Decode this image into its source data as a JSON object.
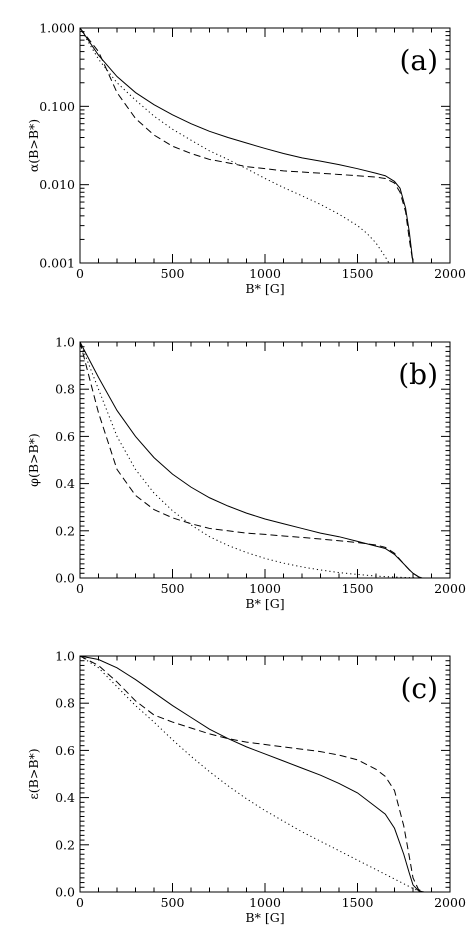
{
  "chart_data": [
    {
      "type": "line",
      "panel_label": "(a)",
      "xlabel": "B* [G]",
      "ylabel": "α(B>B*)",
      "xlim": [
        0,
        2000
      ],
      "ylim": [
        0.001,
        1.0
      ],
      "yscale": "log",
      "xticks": [
        0,
        500,
        1000,
        1500,
        2000
      ],
      "xtick_labels": [
        "0",
        "500",
        "1000",
        "1500",
        "2000"
      ],
      "yticks": [
        0.001,
        0.01,
        0.1,
        1.0
      ],
      "ytick_labels": [
        "0.001",
        "0.010",
        "0.100",
        "1.000"
      ],
      "series": [
        {
          "style": "solid",
          "x": [
            0,
            100,
            200,
            300,
            400,
            500,
            600,
            700,
            800,
            900,
            1000,
            1100,
            1200,
            1300,
            1400,
            1500,
            1600,
            1650,
            1700,
            1730,
            1760,
            1780,
            1800
          ],
          "y": [
            1.0,
            0.45,
            0.24,
            0.15,
            0.105,
            0.078,
            0.06,
            0.048,
            0.04,
            0.034,
            0.029,
            0.025,
            0.022,
            0.02,
            0.018,
            0.016,
            0.014,
            0.013,
            0.011,
            0.009,
            0.005,
            0.0025,
            0.001
          ]
        },
        {
          "style": "dashed",
          "x": [
            0,
            100,
            200,
            300,
            400,
            500,
            600,
            700,
            800,
            900,
            1000,
            1100,
            1200,
            1300,
            1400,
            1500,
            1600,
            1650,
            1700,
            1730,
            1760,
            1780,
            1800
          ],
          "y": [
            1.0,
            0.5,
            0.15,
            0.07,
            0.043,
            0.031,
            0.025,
            0.021,
            0.019,
            0.017,
            0.016,
            0.015,
            0.0145,
            0.014,
            0.0135,
            0.013,
            0.0125,
            0.012,
            0.0105,
            0.008,
            0.0045,
            0.002,
            0.001
          ]
        },
        {
          "style": "dotted",
          "x": [
            0,
            100,
            200,
            300,
            400,
            500,
            600,
            700,
            800,
            900,
            1000,
            1100,
            1200,
            1300,
            1400,
            1500,
            1550,
            1600,
            1650,
            1670
          ],
          "y": [
            1.0,
            0.4,
            0.2,
            0.12,
            0.075,
            0.051,
            0.037,
            0.027,
            0.021,
            0.016,
            0.012,
            0.0092,
            0.0072,
            0.0056,
            0.0042,
            0.003,
            0.0024,
            0.0018,
            0.0012,
            0.001
          ]
        }
      ]
    },
    {
      "type": "line",
      "panel_label": "(b)",
      "xlabel": "B* [G]",
      "ylabel": "φ(B>B*)",
      "xlim": [
        0,
        2000
      ],
      "ylim": [
        0.0,
        1.0
      ],
      "yscale": "linear",
      "xticks": [
        0,
        500,
        1000,
        1500,
        2000
      ],
      "xtick_labels": [
        "0",
        "500",
        "1000",
        "1500",
        "2000"
      ],
      "yticks": [
        0.0,
        0.2,
        0.4,
        0.6,
        0.8,
        1.0
      ],
      "ytick_labels": [
        "0.0",
        "0.2",
        "0.4",
        "0.6",
        "0.8",
        "1.0"
      ],
      "series": [
        {
          "style": "solid",
          "x": [
            0,
            100,
            200,
            300,
            400,
            500,
            600,
            700,
            800,
            900,
            1000,
            1100,
            1200,
            1300,
            1400,
            1500,
            1600,
            1650,
            1700,
            1750,
            1780,
            1800,
            1830,
            1850
          ],
          "y": [
            1.0,
            0.85,
            0.71,
            0.6,
            0.51,
            0.44,
            0.385,
            0.34,
            0.305,
            0.275,
            0.25,
            0.23,
            0.21,
            0.19,
            0.175,
            0.155,
            0.135,
            0.125,
            0.1,
            0.06,
            0.035,
            0.02,
            0.005,
            0.0
          ]
        },
        {
          "style": "dashed",
          "x": [
            0,
            100,
            200,
            300,
            400,
            500,
            600,
            700,
            800,
            900,
            1000,
            1100,
            1200,
            1300,
            1400,
            1500,
            1600,
            1650,
            1700,
            1750,
            1780,
            1800,
            1830,
            1850
          ],
          "y": [
            1.0,
            0.7,
            0.46,
            0.35,
            0.29,
            0.255,
            0.23,
            0.21,
            0.2,
            0.19,
            0.185,
            0.178,
            0.172,
            0.165,
            0.158,
            0.15,
            0.14,
            0.13,
            0.105,
            0.06,
            0.035,
            0.02,
            0.005,
            0.0
          ]
        },
        {
          "style": "dotted",
          "x": [
            0,
            100,
            200,
            300,
            400,
            500,
            600,
            700,
            800,
            900,
            1000,
            1100,
            1200,
            1300,
            1400,
            1500,
            1600,
            1700,
            1800,
            1850
          ],
          "y": [
            1.0,
            0.8,
            0.6,
            0.46,
            0.36,
            0.285,
            0.225,
            0.175,
            0.138,
            0.108,
            0.083,
            0.063,
            0.047,
            0.034,
            0.023,
            0.015,
            0.008,
            0.004,
            0.001,
            0.0
          ]
        }
      ]
    },
    {
      "type": "line",
      "panel_label": "(c)",
      "xlabel": "B* [G]",
      "ylabel": "ε(B>B*)",
      "xlim": [
        0,
        2000
      ],
      "ylim": [
        0.0,
        1.0
      ],
      "yscale": "linear",
      "xticks": [
        0,
        500,
        1000,
        1500,
        2000
      ],
      "xtick_labels": [
        "0",
        "500",
        "1000",
        "1500",
        "2000"
      ],
      "yticks": [
        0.0,
        0.2,
        0.4,
        0.6,
        0.8,
        1.0
      ],
      "ytick_labels": [
        "0.0",
        "0.2",
        "0.4",
        "0.6",
        "0.8",
        "1.0"
      ],
      "series": [
        {
          "style": "solid",
          "x": [
            0,
            100,
            200,
            300,
            400,
            500,
            600,
            700,
            800,
            900,
            1000,
            1100,
            1200,
            1300,
            1400,
            1500,
            1600,
            1650,
            1700,
            1750,
            1780,
            1800,
            1830,
            1860
          ],
          "y": [
            1.0,
            0.985,
            0.95,
            0.9,
            0.845,
            0.79,
            0.74,
            0.69,
            0.65,
            0.615,
            0.585,
            0.555,
            0.525,
            0.495,
            0.46,
            0.42,
            0.36,
            0.33,
            0.27,
            0.16,
            0.08,
            0.03,
            0.005,
            0.0
          ]
        },
        {
          "style": "dashed",
          "x": [
            0,
            100,
            200,
            300,
            400,
            500,
            600,
            700,
            800,
            900,
            1000,
            1100,
            1200,
            1300,
            1400,
            1500,
            1600,
            1650,
            1700,
            1750,
            1780,
            1800,
            1830,
            1860
          ],
          "y": [
            1.0,
            0.96,
            0.89,
            0.81,
            0.75,
            0.72,
            0.695,
            0.67,
            0.65,
            0.635,
            0.625,
            0.615,
            0.605,
            0.595,
            0.58,
            0.56,
            0.52,
            0.49,
            0.43,
            0.28,
            0.15,
            0.06,
            0.01,
            0.0
          ]
        },
        {
          "style": "dotted",
          "x": [
            0,
            100,
            200,
            300,
            400,
            500,
            600,
            700,
            800,
            900,
            1000,
            1100,
            1200,
            1300,
            1400,
            1500,
            1600,
            1700,
            1750,
            1800,
            1830,
            1860
          ],
          "y": [
            1.0,
            0.95,
            0.87,
            0.79,
            0.72,
            0.645,
            0.575,
            0.51,
            0.45,
            0.395,
            0.345,
            0.3,
            0.255,
            0.215,
            0.175,
            0.135,
            0.095,
            0.055,
            0.035,
            0.015,
            0.005,
            0.0
          ]
        }
      ]
    }
  ]
}
